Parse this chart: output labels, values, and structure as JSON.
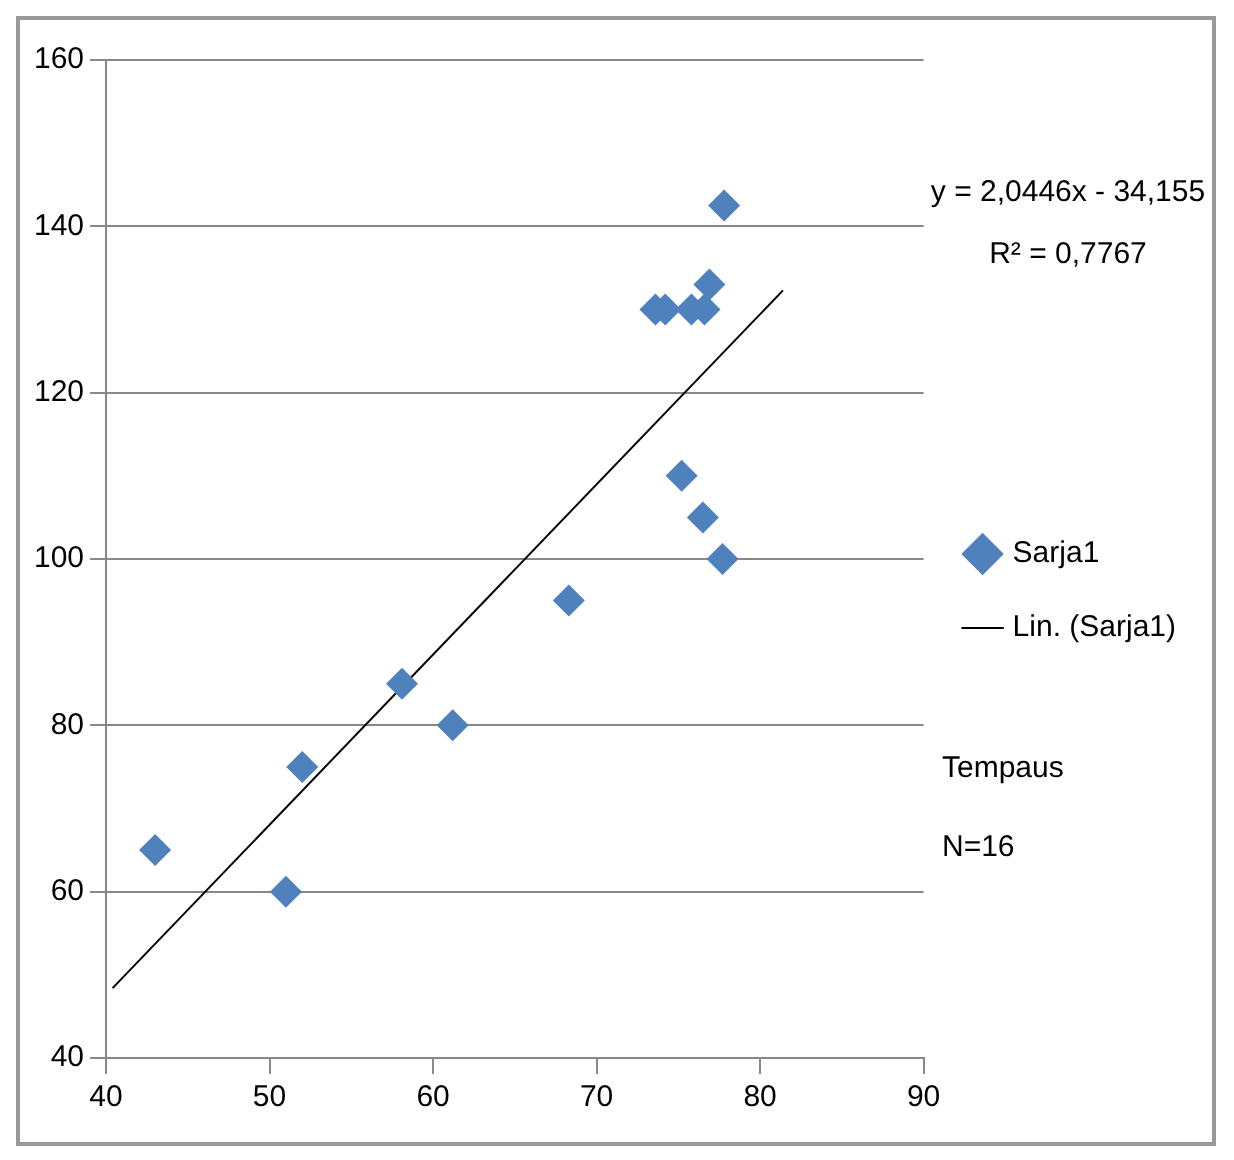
{
  "chart_data": {
    "type": "scatter",
    "xlim": [
      40,
      90
    ],
    "xticks": [
      40,
      50,
      60,
      70,
      80,
      90
    ],
    "ylim": [
      40,
      160
    ],
    "yticks": [
      40,
      60,
      80,
      100,
      120,
      140,
      160
    ],
    "grid": "y",
    "legend": "right",
    "marker": "diamond",
    "series": [
      {
        "name": "Sarja1",
        "type": "scatter",
        "color": "#4f81bd",
        "x": [
          43,
          51,
          52,
          58.1,
          61.2,
          68.3,
          77.8,
          73.6,
          74.2,
          75.8,
          76.6,
          76.9,
          75.2,
          76.5,
          77.7
        ],
        "values": [
          65,
          60,
          75,
          85,
          80,
          95,
          142.5,
          130,
          130,
          130,
          130,
          133,
          110,
          105,
          100
        ]
      },
      {
        "name": "Lin. (Sarja1)",
        "type": "line",
        "color": "#000000",
        "marker": "none",
        "x": [
          40.4,
          81.4
        ],
        "values": [
          48.4,
          132.3
        ]
      }
    ],
    "annotations": [
      "y = 2,0446x - 34,155",
      "R² = 0,7767",
      "Tempaus",
      "N=16"
    ]
  }
}
